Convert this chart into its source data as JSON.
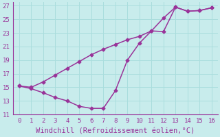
{
  "xlabel": "Windchill (Refroidissement éolien,°C)",
  "bg_color": "#c8ecec",
  "line_color": "#993399",
  "grid_color": "#aadddd",
  "xlim": [
    -0.5,
    16.5
  ],
  "ylim": [
    11,
    27.5
  ],
  "xticks": [
    0,
    1,
    2,
    3,
    4,
    5,
    6,
    7,
    8,
    9,
    10,
    11,
    12,
    13,
    14,
    15,
    16
  ],
  "yticks": [
    11,
    13,
    15,
    17,
    19,
    21,
    23,
    25,
    27
  ],
  "line1_x": [
    0,
    1,
    2,
    3,
    4,
    5,
    6,
    7,
    8,
    9,
    10,
    11,
    12,
    13,
    14,
    15,
    16
  ],
  "line1_y": [
    15.2,
    15.0,
    15.8,
    16.8,
    17.8,
    18.8,
    19.8,
    20.6,
    21.3,
    22.0,
    22.5,
    23.3,
    25.2,
    26.8,
    26.2,
    26.3,
    26.7
  ],
  "line2_x": [
    0,
    1,
    2,
    3,
    4,
    5,
    6,
    7,
    8,
    9,
    10,
    11,
    12,
    13,
    14,
    15,
    16
  ],
  "line2_y": [
    15.2,
    14.8,
    14.2,
    13.5,
    13.0,
    12.2,
    11.9,
    11.9,
    14.5,
    19.0,
    21.5,
    23.3,
    23.2,
    26.8,
    26.2,
    26.3,
    26.7
  ],
  "marker": "D",
  "markersize": 2.5,
  "linewidth": 1.1,
  "tick_fontsize": 6.5,
  "xlabel_fontsize": 7.5
}
